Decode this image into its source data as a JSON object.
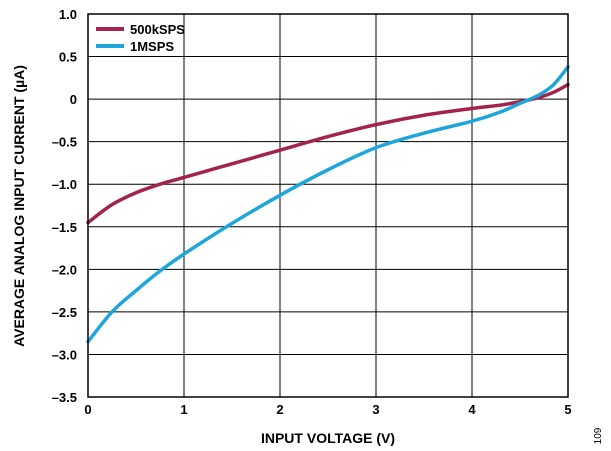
{
  "chart_data": {
    "type": "line",
    "title": "",
    "xlabel": "INPUT VOLTAGE (V)",
    "ylabel": "AVERAGE ANALOG INPUT CURRENT (µA)",
    "xlim": [
      0,
      5
    ],
    "ylim": [
      -3.5,
      1.0
    ],
    "x_ticks": [
      0,
      1,
      2,
      3,
      4,
      5
    ],
    "x_tick_labels": [
      "0",
      "1",
      "2",
      "3",
      "4",
      "5"
    ],
    "y_ticks": [
      1.0,
      0.5,
      0,
      -0.5,
      -1.0,
      -1.5,
      -2.0,
      -2.5,
      -3.0,
      -3.5
    ],
    "y_tick_labels": [
      "1.0",
      "0.5",
      "0",
      "–0.5",
      "–1.0",
      "–1.5",
      "–2.0",
      "–2.5",
      "–3.0",
      "–3.5"
    ],
    "grid": true,
    "legend_position": "top-left",
    "figure_number": "109",
    "series": [
      {
        "name": "500kSPS",
        "color": "#a3234e",
        "x": [
          0,
          0.25,
          0.5,
          0.75,
          1.0,
          1.5,
          2.0,
          2.5,
          3.0,
          3.5,
          4.0,
          4.3,
          4.5,
          4.7,
          4.85,
          5.0
        ],
        "y": [
          -1.45,
          -1.24,
          -1.1,
          -1.0,
          -0.92,
          -0.76,
          -0.6,
          -0.44,
          -0.3,
          -0.19,
          -0.11,
          -0.07,
          -0.03,
          0.02,
          0.08,
          0.17
        ]
      },
      {
        "name": "1MSPS",
        "color": "#1ea6dc",
        "x": [
          0,
          0.25,
          0.5,
          0.75,
          1.0,
          1.5,
          2.0,
          2.5,
          3.0,
          3.5,
          4.0,
          4.3,
          4.5,
          4.7,
          4.85,
          5.0
        ],
        "y": [
          -2.85,
          -2.5,
          -2.25,
          -2.02,
          -1.82,
          -1.46,
          -1.13,
          -0.83,
          -0.57,
          -0.4,
          -0.26,
          -0.15,
          -0.05,
          0.05,
          0.17,
          0.38
        ]
      }
    ]
  }
}
